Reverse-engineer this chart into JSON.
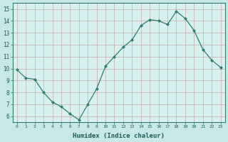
{
  "x": [
    0,
    1,
    2,
    3,
    4,
    5,
    6,
    7,
    8,
    9,
    10,
    11,
    12,
    13,
    14,
    15,
    16,
    17,
    18,
    19,
    20,
    21,
    22,
    23
  ],
  "y": [
    9.9,
    9.2,
    9.1,
    8.0,
    7.2,
    6.8,
    6.2,
    5.7,
    7.0,
    8.3,
    10.2,
    11.0,
    11.8,
    12.4,
    13.6,
    14.1,
    14.0,
    13.7,
    14.8,
    14.2,
    13.2,
    11.6,
    10.7,
    10.1
  ],
  "xlabel": "Humidex (Indice chaleur)",
  "ylim": [
    5.5,
    15.5
  ],
  "xlim": [
    -0.5,
    23.5
  ],
  "yticks": [
    6,
    7,
    8,
    9,
    10,
    11,
    12,
    13,
    14,
    15
  ],
  "xticks": [
    0,
    1,
    2,
    3,
    4,
    5,
    6,
    7,
    8,
    9,
    10,
    11,
    12,
    13,
    14,
    15,
    16,
    17,
    18,
    19,
    20,
    21,
    22,
    23
  ],
  "xtick_labels": [
    "0",
    "1",
    "2",
    "3",
    "4",
    "5",
    "6",
    "7",
    "8",
    "9",
    "10",
    "11",
    "12",
    "13",
    "14",
    "15",
    "16",
    "17",
    "18",
    "19",
    "20",
    "21",
    "22",
    "23"
  ],
  "line_color": "#2e7d6e",
  "marker_color": "#2e7d6e",
  "bg_color": "#c8e8e8",
  "grid_color": "#b0d0d0",
  "axes_bg": "#d8f0f0"
}
